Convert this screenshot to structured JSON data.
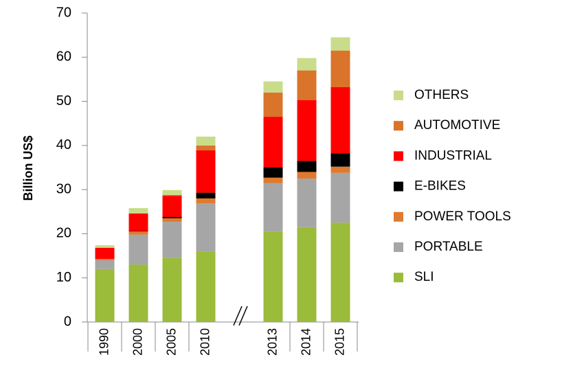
{
  "chart_data": {
    "type": "stacked_bar",
    "y_label": "Billion US$",
    "categories": [
      "1990",
      "2000",
      "2005",
      "2010",
      null,
      "2013",
      "2014",
      "2015"
    ],
    "series": [
      {
        "name": "SLI",
        "color": "#9bbb3b",
        "values": [
          12,
          13,
          14.5,
          16,
          null,
          20.5,
          21.5,
          22.5
        ]
      },
      {
        "name": "PORTABLE",
        "color": "#a6a6a6",
        "values": [
          2,
          6.8,
          8.2,
          10.9,
          null,
          11,
          11,
          11.3
        ]
      },
      {
        "name": "POWER TOOLS",
        "color": "#e07a2e",
        "values": [
          0.3,
          0.7,
          0.8,
          1.1,
          null,
          1.2,
          1.5,
          1.4
        ]
      },
      {
        "name": "E-BIKES",
        "color": "#000000",
        "values": [
          0,
          0.1,
          0.3,
          1.3,
          null,
          2.3,
          2.5,
          3
        ]
      },
      {
        "name": "INDUSTRIAL",
        "color": "#ff0000",
        "values": [
          2.5,
          4,
          4.8,
          9.6,
          null,
          11.5,
          13.8,
          15
        ]
      },
      {
        "name": "AUTOMOTIVE",
        "color": "#d9742a",
        "values": [
          0,
          0,
          0.2,
          1.1,
          null,
          5.5,
          6.7,
          8.3
        ]
      },
      {
        "name": "OTHERS",
        "color": "#c9dc8a",
        "values": [
          0.6,
          1.2,
          1.1,
          2,
          null,
          2.5,
          2.8,
          3
        ]
      }
    ],
    "ylim": [
      0,
      70
    ],
    "yticks": [
      0,
      10,
      20,
      30,
      40,
      50,
      60,
      70
    ],
    "grid": false,
    "legend": "right"
  }
}
